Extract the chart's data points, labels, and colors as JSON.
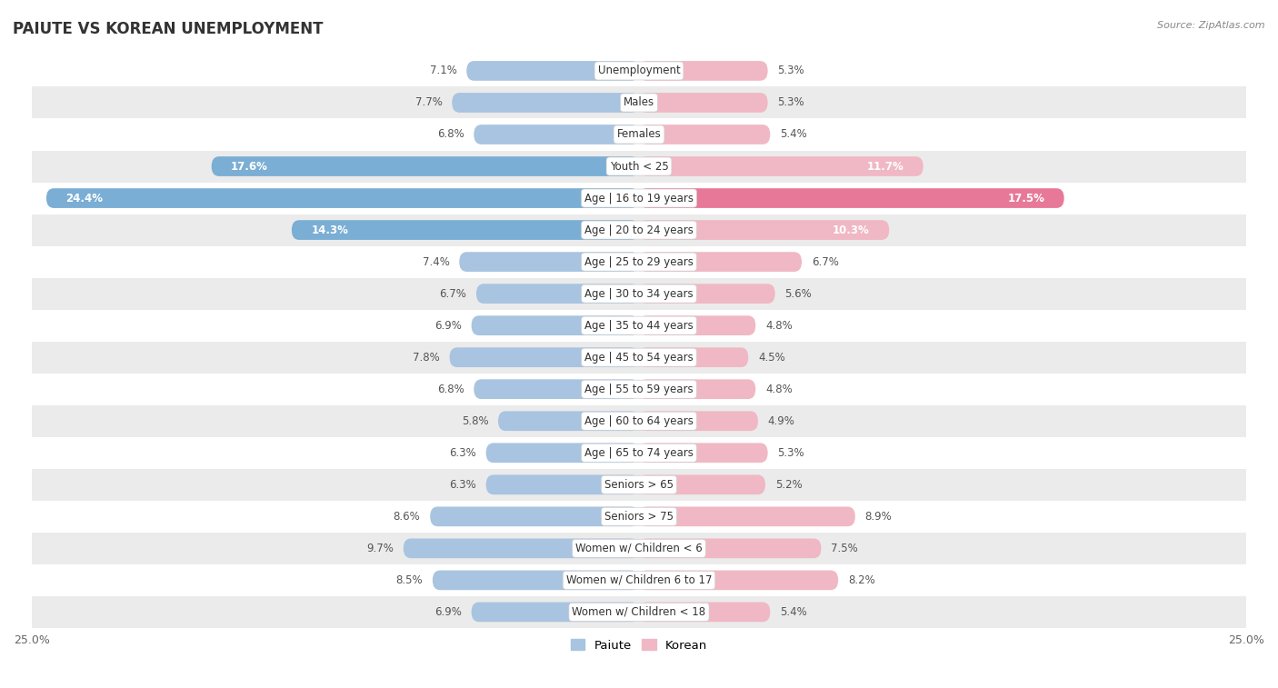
{
  "title": "PAIUTE VS KOREAN UNEMPLOYMENT",
  "source": "Source: ZipAtlas.com",
  "categories": [
    "Unemployment",
    "Males",
    "Females",
    "Youth < 25",
    "Age | 16 to 19 years",
    "Age | 20 to 24 years",
    "Age | 25 to 29 years",
    "Age | 30 to 34 years",
    "Age | 35 to 44 years",
    "Age | 45 to 54 years",
    "Age | 55 to 59 years",
    "Age | 60 to 64 years",
    "Age | 65 to 74 years",
    "Seniors > 65",
    "Seniors > 75",
    "Women w/ Children < 6",
    "Women w/ Children 6 to 17",
    "Women w/ Children < 18"
  ],
  "paiute": [
    7.1,
    7.7,
    6.8,
    17.6,
    24.4,
    14.3,
    7.4,
    6.7,
    6.9,
    7.8,
    6.8,
    5.8,
    6.3,
    6.3,
    8.6,
    9.7,
    8.5,
    6.9
  ],
  "korean": [
    5.3,
    5.3,
    5.4,
    11.7,
    17.5,
    10.3,
    6.7,
    5.6,
    4.8,
    4.5,
    4.8,
    4.9,
    5.3,
    5.2,
    8.9,
    7.5,
    8.2,
    5.4
  ],
  "paiute_color_normal": "#a8c4e0",
  "paiute_color_large": "#7aaed4",
  "korean_color_normal": "#f0b8c4",
  "korean_color_large": "#e87898",
  "background_row_light": "#ffffff",
  "background_row_dark": "#ebebeb",
  "axis_limit": 25.0,
  "legend_paiute": "Paiute",
  "legend_korean": "Korean",
  "large_threshold": 12.0,
  "label_inside_threshold": 10.0
}
